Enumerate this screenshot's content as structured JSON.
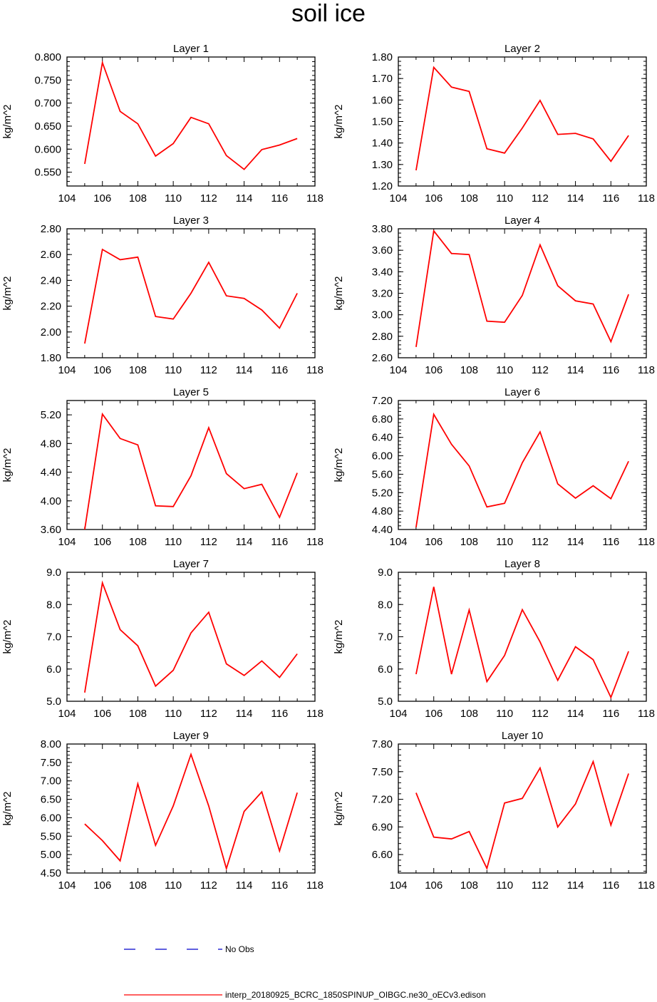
{
  "title": "soil ice",
  "colors": {
    "model": "#ff0000",
    "obs": "#0000cc",
    "axis": "#000000"
  },
  "legend": {
    "obs_label": "No Obs",
    "model_label": "interp_20180925_BCRC_1850SPINUP_OIBGC.ne30_oECv3.edison"
  },
  "chart_data": [
    {
      "type": "line",
      "title": "Layer 1",
      "ylabel": "kg/m^2",
      "xlim": [
        104,
        118
      ],
      "ylim": [
        0.52,
        0.8
      ],
      "xticks": [
        "104",
        "106",
        "108",
        "110",
        "112",
        "114",
        "116",
        "118"
      ],
      "yticks": [
        "0.550",
        "0.600",
        "0.650",
        "0.700",
        "0.750",
        "0.800"
      ],
      "x": [
        105,
        106,
        107,
        108,
        109,
        110,
        111,
        112,
        113,
        114,
        115,
        116,
        117
      ],
      "series": [
        {
          "values": [
            0.568,
            0.788,
            0.682,
            0.655,
            0.585,
            0.612,
            0.669,
            0.655,
            0.586,
            0.556,
            0.599,
            0.609,
            0.623
          ]
        }
      ]
    },
    {
      "type": "line",
      "title": "Layer 2",
      "ylabel": "kg/m^2",
      "xlim": [
        104,
        118
      ],
      "ylim": [
        1.2,
        1.8
      ],
      "xticks": [
        "104",
        "106",
        "108",
        "110",
        "112",
        "114",
        "116",
        "118"
      ],
      "yticks": [
        "1.20",
        "1.30",
        "1.40",
        "1.50",
        "1.60",
        "1.70",
        "1.80"
      ],
      "x": [
        105,
        106,
        107,
        108,
        109,
        110,
        111,
        112,
        113,
        114,
        115,
        116,
        117
      ],
      "series": [
        {
          "values": [
            1.273,
            1.752,
            1.66,
            1.64,
            1.373,
            1.353,
            1.47,
            1.598,
            1.44,
            1.445,
            1.419,
            1.315,
            1.435
          ]
        }
      ]
    },
    {
      "type": "line",
      "title": "Layer 3",
      "ylabel": "kg/m^2",
      "xlim": [
        104,
        118
      ],
      "ylim": [
        1.8,
        2.8
      ],
      "xticks": [
        "104",
        "106",
        "108",
        "110",
        "112",
        "114",
        "116",
        "118"
      ],
      "yticks": [
        "1.80",
        "2.00",
        "2.20",
        "2.40",
        "2.60",
        "2.80"
      ],
      "x": [
        105,
        106,
        107,
        108,
        109,
        110,
        111,
        112,
        113,
        114,
        115,
        116,
        117
      ],
      "series": [
        {
          "values": [
            1.91,
            2.64,
            2.56,
            2.58,
            2.12,
            2.1,
            2.3,
            2.54,
            2.28,
            2.26,
            2.17,
            2.03,
            2.3
          ]
        }
      ]
    },
    {
      "type": "line",
      "title": "Layer 4",
      "ylabel": "kg/m^2",
      "xlim": [
        104,
        118
      ],
      "ylim": [
        2.6,
        3.8
      ],
      "xticks": [
        "104",
        "106",
        "108",
        "110",
        "112",
        "114",
        "116",
        "118"
      ],
      "yticks": [
        "2.60",
        "2.80",
        "3.00",
        "3.20",
        "3.40",
        "3.60",
        "3.80"
      ],
      "x": [
        105,
        106,
        107,
        108,
        109,
        110,
        111,
        112,
        113,
        114,
        115,
        116,
        117
      ],
      "series": [
        {
          "values": [
            2.7,
            3.78,
            3.57,
            3.56,
            2.94,
            2.93,
            3.18,
            3.65,
            3.27,
            3.13,
            3.1,
            2.75,
            3.19
          ]
        }
      ]
    },
    {
      "type": "line",
      "title": "Layer 5",
      "ylabel": "kg/m^2",
      "xlim": [
        104,
        118
      ],
      "ylim": [
        3.6,
        5.4
      ],
      "xticks": [
        "104",
        "106",
        "108",
        "110",
        "112",
        "114",
        "116",
        "118"
      ],
      "yticks": [
        "3.60",
        "4.00",
        "4.40",
        "4.80",
        "5.20"
      ],
      "x": [
        105,
        106,
        107,
        108,
        109,
        110,
        111,
        112,
        113,
        114,
        115,
        116,
        117
      ],
      "series": [
        {
          "values": [
            3.6,
            5.21,
            4.87,
            4.78,
            3.93,
            3.92,
            4.35,
            5.02,
            4.38,
            4.17,
            4.23,
            3.77,
            4.39
          ]
        }
      ]
    },
    {
      "type": "line",
      "title": "Layer 6",
      "ylabel": "kg/m^2",
      "xlim": [
        104,
        118
      ],
      "ylim": [
        4.4,
        7.2
      ],
      "xticks": [
        "104",
        "106",
        "108",
        "110",
        "112",
        "114",
        "116",
        "118"
      ],
      "yticks": [
        "4.40",
        "4.80",
        "5.20",
        "5.60",
        "6.00",
        "6.40",
        "6.80",
        "7.20"
      ],
      "x": [
        105,
        106,
        107,
        108,
        109,
        110,
        111,
        112,
        113,
        114,
        115,
        116,
        117
      ],
      "series": [
        {
          "values": [
            4.45,
            6.9,
            6.25,
            5.78,
            4.89,
            4.97,
            5.85,
            6.52,
            5.39,
            5.08,
            5.35,
            5.07,
            5.88
          ]
        }
      ]
    },
    {
      "type": "line",
      "title": "Layer 7",
      "ylabel": "kg/m^2",
      "xlim": [
        104,
        118
      ],
      "ylim": [
        5.0,
        9.0
      ],
      "xticks": [
        "104",
        "106",
        "108",
        "110",
        "112",
        "114",
        "116",
        "118"
      ],
      "yticks": [
        "5.0",
        "6.0",
        "7.0",
        "8.0",
        "9.0"
      ],
      "x": [
        105,
        106,
        107,
        108,
        109,
        110,
        111,
        112,
        113,
        114,
        115,
        116,
        117
      ],
      "series": [
        {
          "values": [
            5.27,
            8.67,
            7.22,
            6.72,
            5.47,
            5.96,
            7.12,
            7.76,
            6.16,
            5.8,
            6.25,
            5.74,
            6.47
          ]
        }
      ]
    },
    {
      "type": "line",
      "title": "Layer 8",
      "ylabel": "kg/m^2",
      "xlim": [
        104,
        118
      ],
      "ylim": [
        5.0,
        9.0
      ],
      "xticks": [
        "104",
        "106",
        "108",
        "110",
        "112",
        "114",
        "116",
        "118"
      ],
      "yticks": [
        "5.0",
        "6.0",
        "7.0",
        "8.0",
        "9.0"
      ],
      "x": [
        105,
        106,
        107,
        108,
        109,
        110,
        111,
        112,
        113,
        114,
        115,
        116,
        117
      ],
      "series": [
        {
          "values": [
            5.84,
            8.55,
            5.84,
            7.83,
            5.61,
            6.42,
            7.84,
            6.84,
            5.65,
            6.69,
            6.29,
            5.12,
            6.55
          ]
        }
      ]
    },
    {
      "type": "line",
      "title": "Layer 9",
      "ylabel": "kg/m^2",
      "xlim": [
        104,
        118
      ],
      "ylim": [
        4.5,
        8.0
      ],
      "xticks": [
        "104",
        "106",
        "108",
        "110",
        "112",
        "114",
        "116",
        "118"
      ],
      "yticks": [
        "4.50",
        "5.00",
        "5.50",
        "6.00",
        "6.50",
        "7.00",
        "7.50",
        "8.00"
      ],
      "x": [
        105,
        106,
        107,
        108,
        109,
        110,
        111,
        112,
        113,
        114,
        115,
        116,
        117
      ],
      "series": [
        {
          "values": [
            5.83,
            5.38,
            4.83,
            6.92,
            5.25,
            6.32,
            7.72,
            6.32,
            4.62,
            6.17,
            6.7,
            5.1,
            6.68
          ]
        }
      ]
    },
    {
      "type": "line",
      "title": "Layer 10",
      "ylabel": "kg/m^2",
      "xlim": [
        104,
        118
      ],
      "ylim": [
        6.4,
        7.8
      ],
      "xticks": [
        "104",
        "106",
        "108",
        "110",
        "112",
        "114",
        "116",
        "118"
      ],
      "yticks": [
        "6.60",
        "6.90",
        "7.20",
        "7.50",
        "7.80"
      ],
      "x": [
        105,
        106,
        107,
        108,
        109,
        110,
        111,
        112,
        113,
        114,
        115,
        116,
        117
      ],
      "series": [
        {
          "values": [
            7.27,
            6.79,
            6.77,
            6.85,
            6.45,
            7.16,
            7.21,
            7.54,
            6.9,
            7.15,
            7.61,
            6.92,
            7.48
          ]
        }
      ]
    }
  ]
}
